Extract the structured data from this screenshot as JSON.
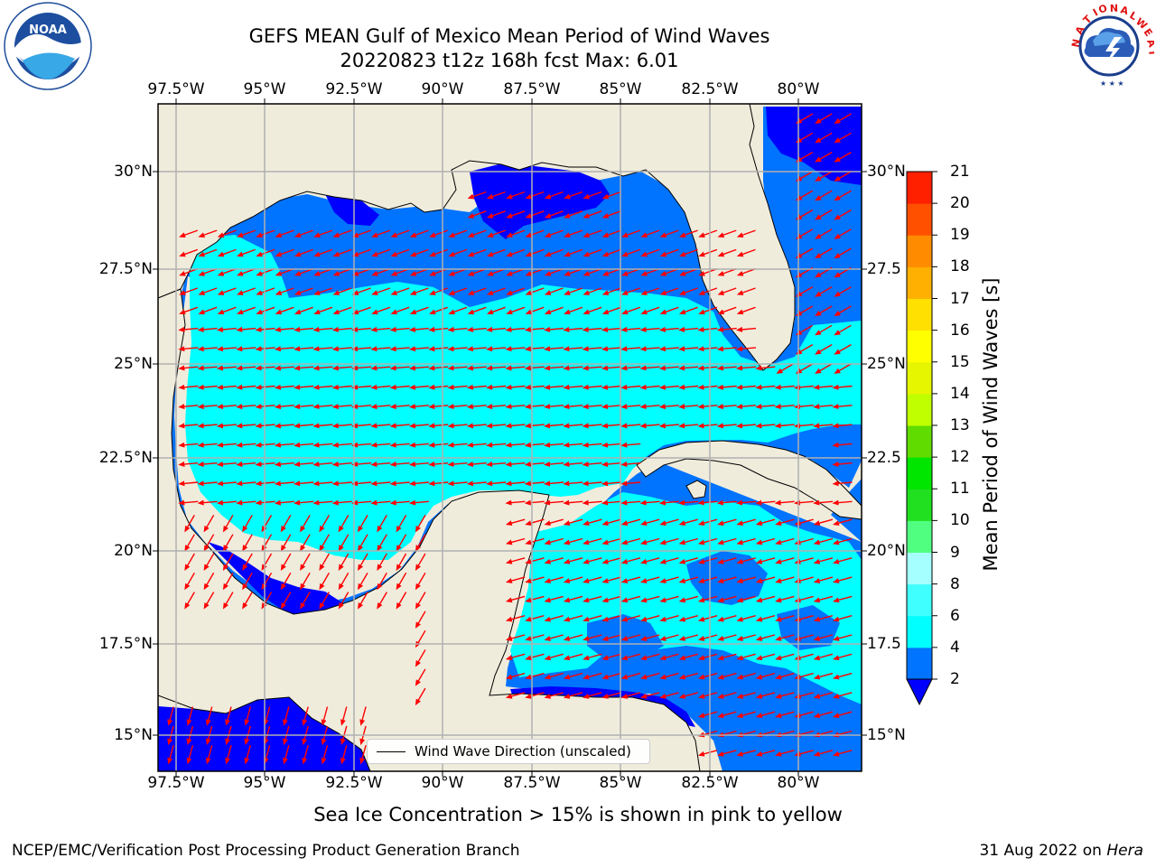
{
  "title_line1": "GEFS MEAN Gulf of Mexico Mean Period of Wind Waves",
  "title_line2": "20220823 t12z 168h fcst   Max: 6.01",
  "logos": {
    "left": "NOAA",
    "right": "NATIONAL WEATHER SERVICE"
  },
  "x_ticks": [
    "97.5°W",
    "95°W",
    "92.5°W",
    "90°W",
    "87.5°W",
    "85°W",
    "82.5°W",
    "80°W"
  ],
  "y_ticks_left": [
    "30°N",
    "27.5°N",
    "25°N",
    "22.5°N",
    "20°N",
    "17.5°N",
    "15°N"
  ],
  "y_ticks_right": [
    "30°N",
    "27.5",
    "25°N",
    "22.5",
    "20°N",
    "17.5",
    "15°N"
  ],
  "colorbar": {
    "label": "Mean Period of Wind Waves [s]",
    "ticks": [
      "2",
      "4",
      "6",
      "8",
      "9",
      "10",
      "11",
      "12",
      "13",
      "14",
      "15",
      "16",
      "17",
      "18",
      "19",
      "20",
      "21"
    ],
    "colors": [
      "#0073ff",
      "#00ffff",
      "#40ffff",
      "#a6ffff",
      "#50ff80",
      "#20e020",
      "#00e600",
      "#60dc00",
      "#c0ff00",
      "#e6f500",
      "#ffff00",
      "#ffe000",
      "#ffb000",
      "#ff8c00",
      "#ff5000",
      "#ff2000"
    ],
    "extend_min_color": "#0000ff"
  },
  "legend": {
    "label": "Wind Wave Direction (unscaled)"
  },
  "note": "Sea Ice Concentration > 15% is shown in pink to yellow",
  "footer_left": "NCEP/EMC/Verification Post Processing Product Generation Branch",
  "footer_right_date": "31 Aug 2022 on ",
  "footer_right_host": "Hera",
  "colors": {
    "land": "#efecdc",
    "lt2": "#0000ff",
    "c2to4": "#0073ff",
    "c4to6": "#00ffff",
    "arrow": "#ff0000"
  }
}
